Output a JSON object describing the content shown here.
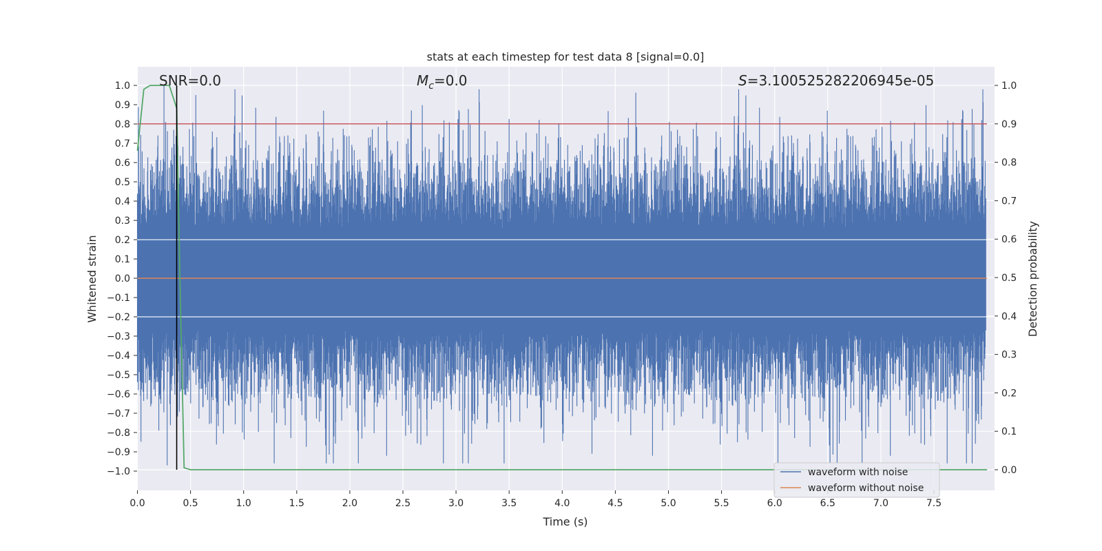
{
  "chart_data": {
    "type": "line",
    "title": "stats at each timestep for test data 8 [signal=0.0]",
    "xlabel": "Time (s)",
    "ylabel": "Whitened strain",
    "y2label": "Detection probability",
    "xlim": [
      0.0,
      8.0
    ],
    "ylim": [
      -1.1,
      1.1
    ],
    "y2lim": [
      -0.05,
      1.05
    ],
    "xticks": [
      0.0,
      0.5,
      1.0,
      1.5,
      2.0,
      2.5,
      3.0,
      3.5,
      4.0,
      4.5,
      5.0,
      5.5,
      6.0,
      6.5,
      7.0,
      7.5
    ],
    "xtick_labels": [
      "0.0",
      "0.5",
      "1.0",
      "1.5",
      "2.0",
      "2.5",
      "3.0",
      "3.5",
      "4.0",
      "4.5",
      "5.0",
      "5.5",
      "6.0",
      "6.5",
      "7.0",
      "7.5"
    ],
    "yticks": [
      1.0,
      0.9,
      0.8,
      0.7,
      0.6,
      0.5,
      0.4,
      0.3,
      0.2,
      0.1,
      0.0,
      -0.1,
      -0.2,
      -0.3,
      -0.4,
      -0.5,
      -0.6,
      -0.7,
      -0.8,
      -0.9,
      -1.0
    ],
    "ytick_labels": [
      "1.0",
      "0.9",
      "0.8",
      "0.7",
      "0.6",
      "0.5",
      "0.4",
      "0.3",
      "0.2",
      "0.1",
      "0.0",
      "−0.1",
      "−0.2",
      "−0.3",
      "−0.4",
      "−0.5",
      "−0.6",
      "−0.7",
      "−0.8",
      "−0.9",
      "−1.0"
    ],
    "y2ticks": [
      1.0,
      0.9,
      0.8,
      0.7,
      0.6,
      0.5,
      0.4,
      0.3,
      0.2,
      0.1,
      0.0
    ],
    "y2tick_labels": [
      "1.0",
      "0.9",
      "0.8",
      "0.7",
      "0.6",
      "0.5",
      "0.4",
      "0.3",
      "0.2",
      "0.1",
      "0.0"
    ],
    "grid": true,
    "legend_position": "lower-right",
    "series": [
      {
        "name": "waveform with noise",
        "color": "#4c72b0",
        "kind": "dense noise, approx. range -0.97 to 1.0",
        "peaks": [
          {
            "x": 0.25,
            "y": 1.0
          },
          {
            "x": 0.28,
            "y": -0.97
          },
          {
            "x": 0.55,
            "y": 0.95
          },
          {
            "x": 2.58,
            "y": 0.87
          },
          {
            "x": 5.62,
            "y": 0.84
          },
          {
            "x": 7.95,
            "y": 0.82
          },
          {
            "x": 4.28,
            "y": -0.91
          },
          {
            "x": 4.85,
            "y": -0.92
          },
          {
            "x": 1.85,
            "y": -0.82
          },
          {
            "x": 5.65,
            "y": -0.85
          }
        ]
      },
      {
        "name": "waveform without noise",
        "color": "#dd8452",
        "x": [
          0.0,
          8.0
        ],
        "y": [
          0.0,
          0.0
        ]
      },
      {
        "name": "Detection probability",
        "axis": "right",
        "color": "#55a868",
        "x": [
          0.0,
          0.06,
          0.12,
          0.18,
          0.24,
          0.3,
          0.37,
          0.4,
          0.44,
          0.5,
          8.0
        ],
        "y": [
          0.83,
          0.99,
          1.0,
          1.0,
          1.0,
          1.0,
          0.94,
          0.5,
          0.005,
          0.0,
          0.0
        ]
      },
      {
        "name": "threshold",
        "axis": "right",
        "color": "#c44e52",
        "x": [
          0.0,
          8.0
        ],
        "y": [
          0.9,
          0.9
        ]
      },
      {
        "name": "detection time",
        "color": "#000000",
        "vline_x": 0.37
      }
    ],
    "annotations": [
      {
        "text": "SNR=0.0",
        "x": 0.2
      },
      {
        "text_symbol": "M",
        "text_sub": "c",
        "text_value": "=0.0",
        "x": 2.6
      },
      {
        "text_symbol": "S",
        "text_value": "=3.100525282206945e-05",
        "x": 5.6
      }
    ]
  }
}
